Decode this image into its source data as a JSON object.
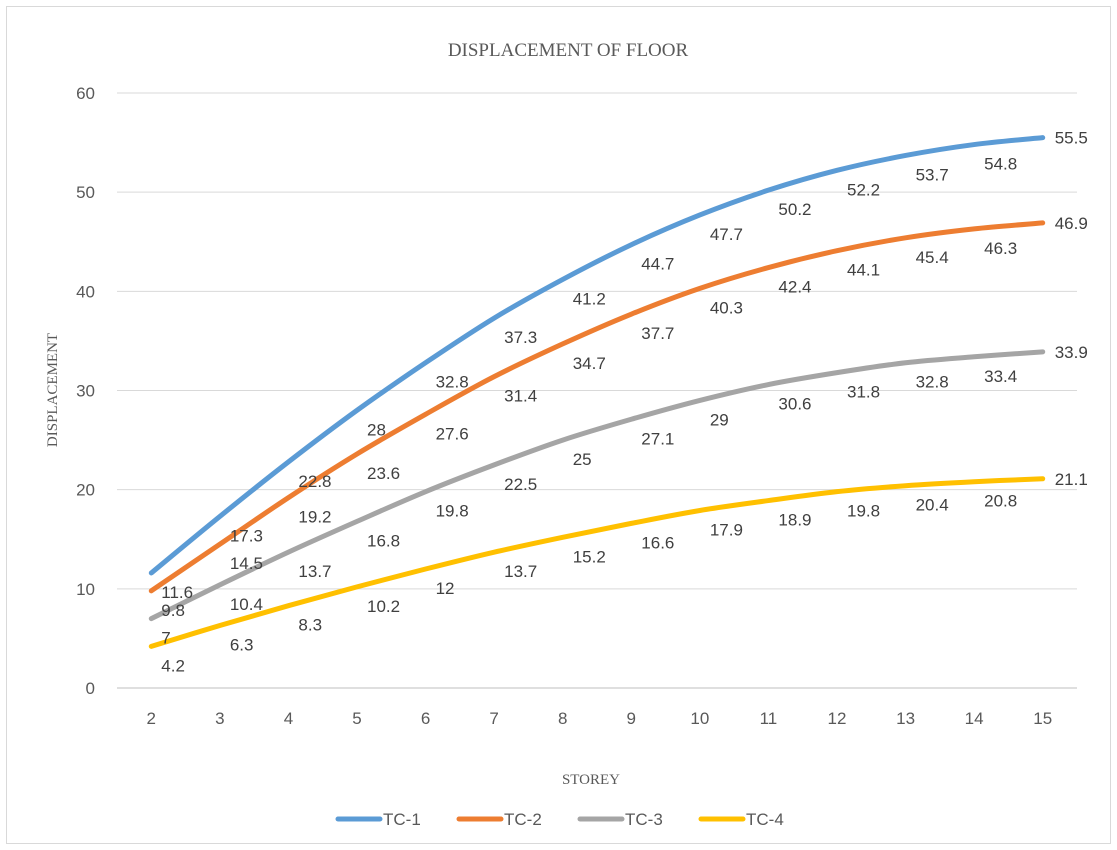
{
  "chart_data": {
    "type": "line",
    "title": "DISPLACEMENT OF FLOOR",
    "xlabel": "STOREY",
    "ylabel": "DISPLACEMENT",
    "categories": [
      "2",
      "3",
      "4",
      "5",
      "6",
      "7",
      "8",
      "9",
      "10",
      "11",
      "12",
      "13",
      "14",
      "15"
    ],
    "ylim": [
      0,
      60
    ],
    "yticks": [
      "0",
      "10",
      "20",
      "30",
      "40",
      "50",
      "60"
    ],
    "grid": "horizontal",
    "legend_position": "bottom",
    "series": [
      {
        "name": "TC-1",
        "color": "#5b9bd5",
        "values": [
          11.6,
          17.3,
          22.8,
          28,
          32.8,
          37.3,
          41.2,
          44.7,
          47.7,
          50.2,
          52.2,
          53.7,
          54.8,
          55.5
        ],
        "labels": [
          "11.6",
          "17.3",
          "22.8",
          "28",
          "32.8",
          "37.3",
          "41.2",
          "44.7",
          "47.7",
          "50.2",
          "52.2",
          "53.7",
          "54.8",
          "55.5"
        ]
      },
      {
        "name": "TC-2",
        "color": "#ed7d31",
        "values": [
          9.8,
          14.5,
          19.2,
          23.6,
          27.6,
          31.4,
          34.7,
          37.7,
          40.3,
          42.4,
          44.1,
          45.4,
          46.3,
          46.9
        ],
        "labels": [
          "9.8",
          "14.5",
          "19.2",
          "23.6",
          "27.6",
          "31.4",
          "34.7",
          "37.7",
          "40.3",
          "42.4",
          "44.1",
          "45.4",
          "46.3",
          "46.9"
        ]
      },
      {
        "name": "TC-3",
        "color": "#a5a5a5",
        "values": [
          7,
          10.4,
          13.7,
          16.8,
          19.8,
          22.5,
          25,
          27.1,
          29,
          30.6,
          31.8,
          32.8,
          33.4,
          33.9
        ],
        "labels": [
          "7",
          "10.4",
          "13.7",
          "16.8",
          "19.8",
          "22.5",
          "25",
          "27.1",
          "29",
          "30.6",
          "31.8",
          "32.8",
          "33.4",
          "33.9"
        ]
      },
      {
        "name": "TC-4",
        "color": "#ffc000",
        "values": [
          4.2,
          6.3,
          8.3,
          10.2,
          12,
          13.7,
          15.2,
          16.6,
          17.9,
          18.9,
          19.8,
          20.4,
          20.8,
          21.1
        ],
        "labels": [
          "4.2",
          "6.3",
          "8.3",
          "10.2",
          "12",
          "13.7",
          "15.2",
          "16.6",
          "17.9",
          "18.9",
          "19.8",
          "20.4",
          "20.8",
          "21.1"
        ]
      }
    ]
  }
}
